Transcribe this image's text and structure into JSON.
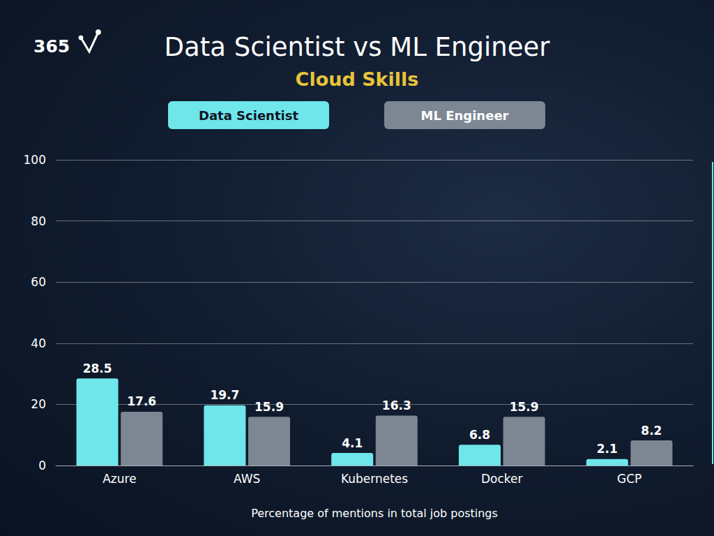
{
  "chart_data": {
    "type": "bar",
    "title": "Data Scientist vs ML Engineer",
    "subtitle": "Cloud Skills",
    "annotations": [
      "365"
    ],
    "x_label": "Percentage of mentions in total job postings",
    "categories": [
      "Azure",
      "AWS",
      "Kubernetes",
      "Docker",
      "GCP"
    ],
    "series": [
      {
        "name": "Data Scientist",
        "color": "#6ee6ea",
        "values": [
          28.5,
          19.7,
          4.1,
          6.8,
          2.1
        ]
      },
      {
        "name": "ML Engineer",
        "color": "#7d8793",
        "values": [
          17.6,
          15.9,
          16.3,
          15.9,
          8.2
        ]
      }
    ],
    "ylim": [
      0,
      100
    ],
    "yticks": [
      0,
      20,
      40,
      60,
      80,
      100
    ],
    "grid": true,
    "legend": "top",
    "data_labels": true
  }
}
